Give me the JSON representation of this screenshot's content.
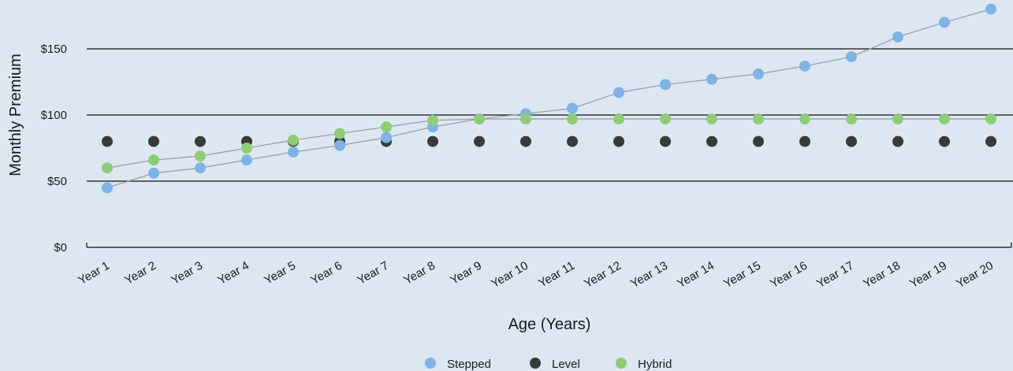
{
  "chart_data": {
    "type": "line",
    "title": "",
    "xlabel": "Age (Years)",
    "ylabel": "Monthly Premium",
    "categories": [
      "Year 1",
      "Year 2",
      "Year 3",
      "Year 4",
      "Year 5",
      "Year 6",
      "Year 7",
      "Year 8",
      "Year 9",
      "Year 10",
      "Year 11",
      "Year 12",
      "Year 13",
      "Year 14",
      "Year 15",
      "Year 16",
      "Year 17",
      "Year 18",
      "Year 19",
      "Year 20"
    ],
    "ylim": [
      0,
      175
    ],
    "yticks": [
      0,
      50,
      100,
      150
    ],
    "ytick_labels": [
      "$0",
      "$50",
      "$100",
      "$150"
    ],
    "grid": true,
    "legend_position": "bottom",
    "series": [
      {
        "name": "Stepped",
        "color": "#7fb2e5",
        "connected": true,
        "values": [
          45,
          56,
          60,
          66,
          72,
          77,
          83,
          91,
          97,
          101,
          105,
          117,
          123,
          127,
          131,
          137,
          144,
          159,
          170,
          180
        ]
      },
      {
        "name": "Level",
        "color": "#3a3a3a",
        "connected": false,
        "values": [
          80,
          80,
          80,
          80,
          80,
          80,
          80,
          80,
          80,
          80,
          80,
          80,
          80,
          80,
          80,
          80,
          80,
          80,
          80,
          80
        ]
      },
      {
        "name": "Hybrid",
        "color": "#8fcc78",
        "connected": true,
        "values": [
          60,
          66,
          69,
          75,
          81,
          86,
          91,
          96,
          97,
          97,
          97,
          97,
          97,
          97,
          97,
          97,
          97,
          97,
          97,
          97
        ]
      }
    ]
  }
}
